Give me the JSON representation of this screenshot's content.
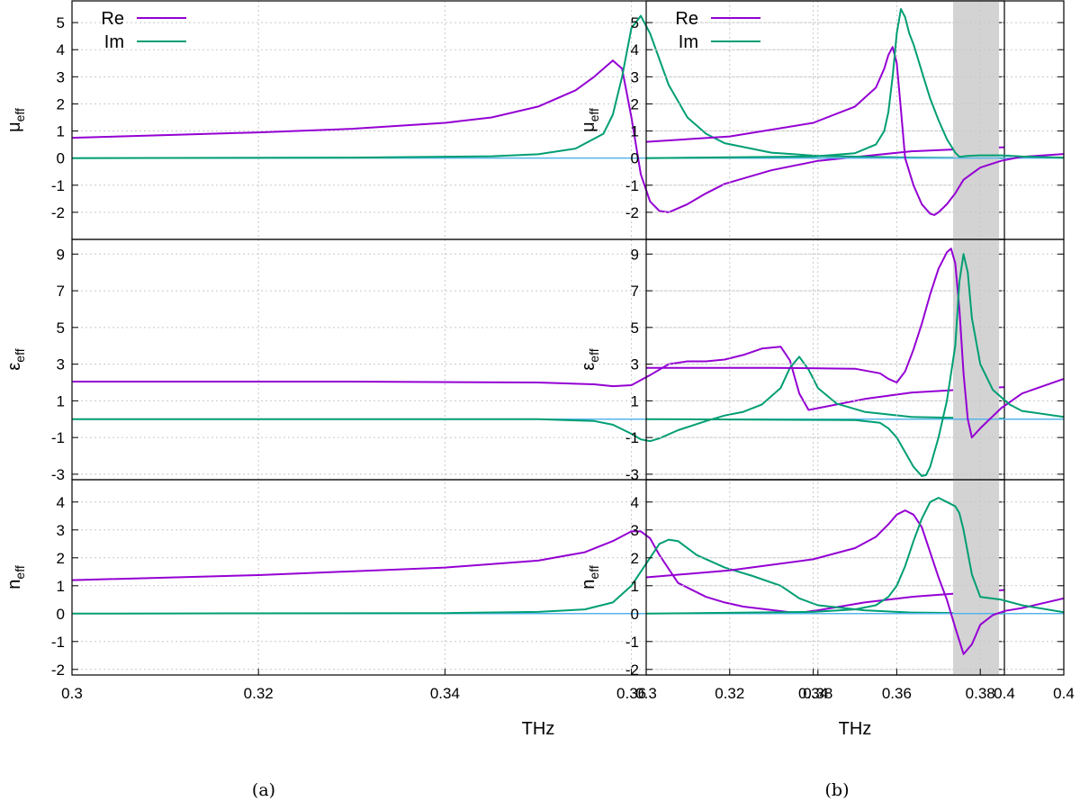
{
  "colors": {
    "re": "#9400d3",
    "im": "#009e73",
    "zero": "#56b4e9",
    "grid": "#c8c8c8",
    "band": "#d3d3d3"
  },
  "chart_data": [
    {
      "type": "line",
      "caption": "(a)",
      "xlabel": "THz",
      "xlim": [
        0.3,
        0.4
      ],
      "xticks": [
        "0.3",
        "0.32",
        "0.34",
        "0.36",
        "0.38",
        "0.4"
      ],
      "legend": {
        "position": "top-left",
        "entries": [
          "Re",
          "Im"
        ]
      },
      "shaded_band": null,
      "panels": [
        {
          "ylabel_main": "μ",
          "ylabel_sub": "eff",
          "ylim": [
            -3,
            5.8
          ],
          "yticks": [
            "-2",
            "-1",
            "0",
            "1",
            "2",
            "3",
            "4",
            "5"
          ],
          "series": [
            {
              "name": "Re",
              "x": [
                0.3,
                0.31,
                0.32,
                0.33,
                0.34,
                0.345,
                0.35,
                0.354,
                0.356,
                0.358,
                0.359,
                0.36,
                0.361,
                0.362,
                0.363,
                0.364,
                0.366,
                0.368,
                0.37,
                0.375,
                0.38,
                0.39,
                0.4
              ],
              "y": [
                0.75,
                0.85,
                0.95,
                1.08,
                1.3,
                1.5,
                1.9,
                2.5,
                3.0,
                3.6,
                3.3,
                1.5,
                -0.6,
                -1.6,
                -1.95,
                -2.0,
                -1.7,
                -1.3,
                -0.95,
                -0.45,
                -0.1,
                0.25,
                0.4
              ]
            },
            {
              "name": "Im",
              "x": [
                0.3,
                0.33,
                0.345,
                0.35,
                0.354,
                0.357,
                0.358,
                0.359,
                0.36,
                0.361,
                0.362,
                0.364,
                0.366,
                0.368,
                0.37,
                0.375,
                0.38,
                0.39,
                0.4
              ],
              "y": [
                0.0,
                0.02,
                0.07,
                0.14,
                0.35,
                0.9,
                1.6,
                3.0,
                4.8,
                5.25,
                4.6,
                2.7,
                1.5,
                0.9,
                0.55,
                0.2,
                0.08,
                0.02,
                0.0
              ]
            }
          ]
        },
        {
          "ylabel_main": "ε",
          "ylabel_sub": "eff",
          "ylim": [
            -3.3,
            9.8
          ],
          "yticks": [
            "-3",
            "-1",
            "1",
            "3",
            "5",
            "7",
            "9"
          ],
          "series": [
            {
              "name": "Re",
              "x": [
                0.3,
                0.33,
                0.35,
                0.356,
                0.358,
                0.36,
                0.362,
                0.364,
                0.366,
                0.368,
                0.37,
                0.372,
                0.374,
                0.376,
                0.377,
                0.378,
                0.379,
                0.38,
                0.385,
                0.39,
                0.4
              ],
              "y": [
                2.05,
                2.05,
                2.0,
                1.9,
                1.8,
                1.85,
                2.4,
                3.0,
                3.15,
                3.15,
                3.25,
                3.5,
                3.85,
                3.95,
                3.2,
                1.4,
                0.5,
                0.6,
                1.1,
                1.45,
                1.75
              ]
            },
            {
              "name": "Im",
              "x": [
                0.3,
                0.35,
                0.356,
                0.358,
                0.36,
                0.361,
                0.362,
                0.363,
                0.365,
                0.368,
                0.37,
                0.372,
                0.374,
                0.376,
                0.377,
                0.378,
                0.379,
                0.38,
                0.382,
                0.385,
                0.39,
                0.4
              ],
              "y": [
                0.0,
                0.0,
                -0.1,
                -0.3,
                -0.8,
                -1.1,
                -1.2,
                -1.05,
                -0.6,
                -0.1,
                0.2,
                0.4,
                0.8,
                1.7,
                2.8,
                3.4,
                2.7,
                1.7,
                0.85,
                0.4,
                0.12,
                0.02
              ]
            }
          ]
        },
        {
          "ylabel_main": "n",
          "ylabel_sub": "eff",
          "ylim": [
            -2.2,
            4.8
          ],
          "yticks": [
            "-2",
            "-1",
            "0",
            "1",
            "2",
            "3",
            "4"
          ],
          "series": [
            {
              "name": "Re",
              "x": [
                0.3,
                0.32,
                0.34,
                0.35,
                0.355,
                0.358,
                0.36,
                0.361,
                0.362,
                0.363,
                0.365,
                0.368,
                0.37,
                0.372,
                0.375,
                0.377,
                0.378,
                0.38,
                0.385,
                0.39,
                0.4
              ],
              "y": [
                1.2,
                1.38,
                1.65,
                1.9,
                2.2,
                2.6,
                2.95,
                2.95,
                2.7,
                2.1,
                1.1,
                0.6,
                0.4,
                0.25,
                0.13,
                0.05,
                0.03,
                0.12,
                0.4,
                0.6,
                0.85
              ]
            },
            {
              "name": "Im",
              "x": [
                0.3,
                0.34,
                0.35,
                0.355,
                0.358,
                0.36,
                0.362,
                0.363,
                0.364,
                0.365,
                0.367,
                0.37,
                0.373,
                0.376,
                0.378,
                0.38,
                0.385,
                0.39,
                0.4
              ],
              "y": [
                0.0,
                0.02,
                0.06,
                0.15,
                0.4,
                1.0,
                2.0,
                2.5,
                2.65,
                2.6,
                2.1,
                1.65,
                1.35,
                1.0,
                0.55,
                0.3,
                0.12,
                0.04,
                0.0
              ]
            }
          ]
        }
      ]
    },
    {
      "type": "line",
      "caption": "(b)",
      "xlabel": "THz",
      "xlim": [
        0.3,
        0.4
      ],
      "xticks": [
        "0.3",
        "0.32",
        "0.34",
        "0.36",
        "0.38",
        "0.4"
      ],
      "legend": {
        "position": "top-left",
        "entries": [
          "Re",
          "Im"
        ]
      },
      "shaded_band": [
        0.3735,
        0.3845
      ],
      "panels": [
        {
          "ylabel_main": "μ",
          "ylabel_sub": "eff",
          "ylim": [
            -3,
            5.8
          ],
          "yticks": [
            "-2",
            "-1",
            "0",
            "1",
            "2",
            "3",
            "4",
            "5"
          ],
          "series": [
            {
              "name": "Re",
              "x": [
                0.3,
                0.32,
                0.34,
                0.35,
                0.355,
                0.357,
                0.358,
                0.359,
                0.36,
                0.361,
                0.362,
                0.364,
                0.366,
                0.368,
                0.369,
                0.37,
                0.372,
                0.374,
                0.376,
                0.38,
                0.385,
                0.39,
                0.4
              ],
              "y": [
                0.6,
                0.8,
                1.3,
                1.9,
                2.6,
                3.3,
                3.8,
                4.1,
                3.5,
                1.8,
                0.0,
                -1.0,
                -1.7,
                -2.05,
                -2.1,
                -2.0,
                -1.7,
                -1.3,
                -0.8,
                -0.35,
                -0.1,
                0.05,
                0.15
              ]
            },
            {
              "name": "Im",
              "x": [
                0.3,
                0.34,
                0.35,
                0.355,
                0.357,
                0.358,
                0.359,
                0.36,
                0.361,
                0.362,
                0.363,
                0.364,
                0.366,
                0.368,
                0.37,
                0.372,
                0.374,
                0.375,
                0.377,
                0.38,
                0.385,
                0.39,
                0.4
              ],
              "y": [
                0.0,
                0.06,
                0.18,
                0.5,
                1.0,
                1.7,
                3.0,
                4.6,
                5.5,
                5.2,
                4.6,
                4.2,
                3.2,
                2.2,
                1.4,
                0.7,
                0.2,
                0.05,
                0.08,
                0.1,
                0.1,
                0.06,
                0.02
              ]
            }
          ]
        },
        {
          "ylabel_main": "ε",
          "ylabel_sub": "eff",
          "ylim": [
            -3.3,
            9.8
          ],
          "yticks": [
            "-3",
            "-1",
            "1",
            "3",
            "5",
            "7",
            "9"
          ],
          "series": [
            {
              "name": "Re",
              "x": [
                0.3,
                0.33,
                0.35,
                0.356,
                0.358,
                0.36,
                0.362,
                0.364,
                0.366,
                0.368,
                0.37,
                0.372,
                0.373,
                0.374,
                0.375,
                0.376,
                0.377,
                0.378,
                0.38,
                0.385,
                0.39,
                0.4
              ],
              "y": [
                2.8,
                2.8,
                2.75,
                2.5,
                2.2,
                2.0,
                2.6,
                3.8,
                5.2,
                6.8,
                8.2,
                9.1,
                9.3,
                8.5,
                6.0,
                2.5,
                0.0,
                -1.0,
                -0.5,
                0.6,
                1.4,
                2.2
              ]
            },
            {
              "name": "Im",
              "x": [
                0.3,
                0.35,
                0.356,
                0.358,
                0.36,
                0.362,
                0.364,
                0.366,
                0.367,
                0.368,
                0.37,
                0.372,
                0.374,
                0.375,
                0.376,
                0.377,
                0.378,
                0.38,
                0.383,
                0.387,
                0.39,
                0.4
              ],
              "y": [
                0.0,
                -0.05,
                -0.2,
                -0.5,
                -1.0,
                -1.8,
                -2.6,
                -3.1,
                -3.05,
                -2.6,
                -1.0,
                1.0,
                4.0,
                7.5,
                9.0,
                8.0,
                5.5,
                3.0,
                1.6,
                0.8,
                0.45,
                0.12
              ]
            }
          ]
        },
        {
          "ylabel_main": "n",
          "ylabel_sub": "eff",
          "ylim": [
            -2.2,
            4.8
          ],
          "yticks": [
            "-2",
            "-1",
            "0",
            "1",
            "2",
            "3",
            "4"
          ],
          "series": [
            {
              "name": "Re",
              "x": [
                0.3,
                0.32,
                0.34,
                0.35,
                0.355,
                0.358,
                0.36,
                0.362,
                0.364,
                0.366,
                0.368,
                0.37,
                0.372,
                0.374,
                0.376,
                0.378,
                0.38,
                0.383,
                0.386,
                0.39,
                0.4
              ],
              "y": [
                1.3,
                1.55,
                1.95,
                2.35,
                2.75,
                3.2,
                3.55,
                3.7,
                3.55,
                3.1,
                2.2,
                1.3,
                0.5,
                -0.5,
                -1.45,
                -1.1,
                -0.4,
                -0.05,
                0.1,
                0.2,
                0.55
              ]
            },
            {
              "name": "Im",
              "x": [
                0.3,
                0.34,
                0.35,
                0.355,
                0.358,
                0.36,
                0.362,
                0.364,
                0.366,
                0.368,
                0.37,
                0.372,
                0.374,
                0.375,
                0.376,
                0.378,
                0.38,
                0.385,
                0.39,
                0.4
              ],
              "y": [
                0.0,
                0.06,
                0.15,
                0.3,
                0.6,
                1.0,
                1.7,
                2.6,
                3.4,
                4.0,
                4.15,
                4.0,
                3.85,
                3.6,
                3.0,
                1.4,
                0.6,
                0.5,
                0.3,
                0.05
              ]
            }
          ]
        }
      ]
    }
  ]
}
